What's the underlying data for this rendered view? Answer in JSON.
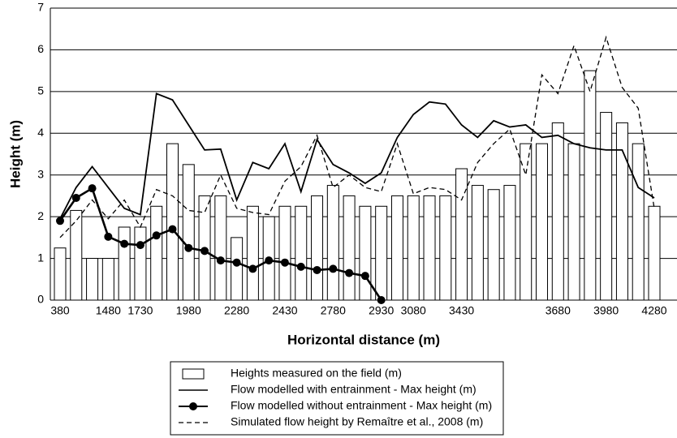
{
  "chart_data": {
    "type": "bar",
    "x_label": "Horizontal distance (m)",
    "y_label": "Height (m)",
    "categories": [
      "380",
      null,
      null,
      "1480",
      null,
      "1730",
      null,
      null,
      "1980",
      null,
      null,
      "2280",
      null,
      null,
      "2430",
      null,
      null,
      "2780",
      null,
      null,
      "2930",
      null,
      "3080",
      null,
      null,
      "3430",
      null,
      null,
      null,
      null,
      null,
      "3680",
      null,
      null,
      "3980",
      null,
      null,
      "4280"
    ],
    "ylim": [
      0,
      7
    ],
    "yticks": [
      0,
      1,
      2,
      3,
      4,
      5,
      6,
      7
    ],
    "grid": true,
    "series": [
      {
        "name": "Heights measured on the field (m)",
        "kind": "bar",
        "color": "#ffffff",
        "values": [
          1.25,
          2.15,
          1,
          1,
          1.75,
          1.75,
          2.25,
          3.75,
          3.25,
          2.5,
          2.5,
          1.5,
          2.25,
          2,
          2.25,
          2.25,
          2.5,
          2.75,
          2.5,
          2.25,
          2.25,
          2.5,
          2.5,
          2.5,
          2.5,
          3.15,
          2.75,
          2.65,
          2.75,
          3.75,
          3.75,
          4.25,
          3.75,
          5.5,
          4.5,
          4.25,
          3.75,
          2.25
        ]
      },
      {
        "name": "Flow modelled with entrainment - Max height (m)",
        "kind": "line",
        "color": "#000000",
        "values": [
          1.95,
          2.7,
          3.2,
          2.7,
          2.2,
          2.05,
          4.95,
          4.8,
          4.2,
          3.6,
          3.62,
          2.4,
          3.3,
          3.15,
          3.75,
          2.6,
          3.85,
          3.25,
          3.05,
          2.8,
          3.05,
          3.9,
          4.45,
          4.75,
          4.7,
          4.2,
          3.9,
          4.3,
          4.15,
          4.2,
          3.9,
          3.95,
          3.75,
          3.65,
          3.6,
          3.6,
          2.7,
          2.45
        ]
      },
      {
        "name": "Flow modelled without entrainment - Max height (m)",
        "kind": "dotline",
        "color": "#000000",
        "values": [
          1.9,
          2.45,
          2.68,
          1.52,
          1.35,
          1.32,
          1.55,
          1.7,
          1.25,
          1.18,
          0.95,
          0.9,
          0.75,
          0.95,
          0.9,
          0.8,
          0.72,
          0.75,
          0.65,
          0.58,
          0,
          null,
          null,
          null,
          null,
          null,
          null,
          null,
          null,
          null,
          null,
          null,
          null,
          null,
          null,
          null,
          null,
          null
        ]
      },
      {
        "name": "Simulated flow height by Remaître et al., 2008 (m)",
        "kind": "dashed",
        "color": "#000000",
        "values": [
          1.5,
          1.9,
          2.4,
          1.95,
          2.4,
          1.75,
          2.65,
          2.5,
          2.15,
          2.1,
          3.0,
          2.2,
          2.1,
          2.05,
          2.85,
          3.2,
          3.95,
          2.7,
          3.0,
          2.7,
          2.6,
          3.75,
          2.55,
          2.7,
          2.65,
          2.4,
          3.3,
          3.75,
          4.1,
          3.0,
          5.4,
          4.95,
          6.1,
          5.0,
          6.3,
          5.1,
          4.6,
          2.2
        ]
      }
    ]
  }
}
